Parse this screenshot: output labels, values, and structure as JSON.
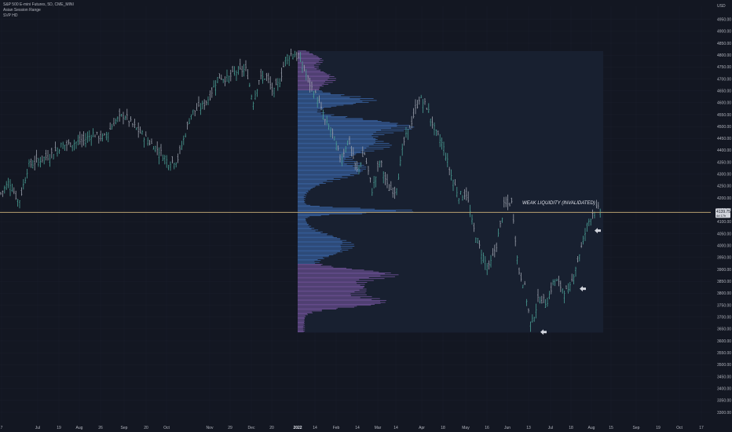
{
  "legend": {
    "symbol": "S&P 500 E-mini Futures, 5D, CME_MINI",
    "indicator1": "Asian Session Range",
    "indicator2": "SVP HD"
  },
  "currency": "USD",
  "chart_data": {
    "type": "candlestick",
    "y_ticks": [
      3300,
      3350,
      3400,
      3450,
      3500,
      3550,
      3600,
      3650,
      3700,
      3750,
      3800,
      3850,
      3900,
      3950,
      4000,
      4050,
      4100,
      4150,
      4200,
      4250,
      4300,
      4350,
      4400,
      4450,
      4500,
      4550,
      4600,
      4650,
      4700,
      4750,
      4800,
      4850,
      4900,
      4950
    ],
    "y_tick_labels": [
      "3300.00",
      "3350.00",
      "3400.00",
      "3450.00",
      "3500.00",
      "3550.00",
      "3600.00",
      "3650.00",
      "3700.00",
      "3750.00",
      "3800.00",
      "3850.00",
      "3900.00",
      "3950.00",
      "4000.00",
      "4050.00",
      "4100.00",
      "4150.00",
      "4200.00",
      "4250.00",
      "4300.00",
      "4350.00",
      "4400.00",
      "4450.00",
      "4500.00",
      "4550.00",
      "4600.00",
      "4650.00",
      "4700.00",
      "4750.00",
      "4800.00",
      "4850.00",
      "4900.00",
      "4950.00"
    ],
    "ylim": [
      3290,
      5005
    ],
    "x_labels": [
      "7",
      "Jul",
      "19",
      "Aug",
      "26",
      "Sep",
      "20",
      "Oct",
      "Nov",
      "29",
      "Dec",
      "20",
      "2022",
      "14",
      "Feb",
      "14",
      "Mar",
      "14",
      "Apr",
      "18",
      "May",
      "16",
      "Jun",
      "13",
      "Jul",
      "18",
      "Aug",
      "15",
      "Sep",
      "19",
      "Oct",
      "17"
    ],
    "price_line": 4139.75,
    "price_label": "4139.75",
    "price_countdown": "4d 17h",
    "annotation": "WEAK LIQUIDITY (INVALIDATED)",
    "annotation_price": 4174,
    "arrow_prices": [
      4063,
      3819,
      3637
    ],
    "profile_range": [
      3635,
      4817
    ],
    "anchors": [
      [
        0,
        4215
      ],
      [
        12,
        4270
      ],
      [
        24,
        4180
      ],
      [
        36,
        4335
      ],
      [
        50,
        4360
      ],
      [
        64,
        4380
      ],
      [
        78,
        4420
      ],
      [
        92,
        4430
      ],
      [
        106,
        4440
      ],
      [
        118,
        4470
      ],
      [
        132,
        4450
      ],
      [
        146,
        4520
      ],
      [
        158,
        4550
      ],
      [
        168,
        4510
      ],
      [
        180,
        4470
      ],
      [
        192,
        4430
      ],
      [
        204,
        4395
      ],
      [
        214,
        4350
      ],
      [
        226,
        4360
      ],
      [
        236,
        4470
      ],
      [
        244,
        4560
      ],
      [
        256,
        4580
      ],
      [
        266,
        4620
      ],
      [
        278,
        4710
      ],
      [
        290,
        4700
      ],
      [
        300,
        4730
      ],
      [
        314,
        4740
      ],
      [
        322,
        4600
      ],
      [
        330,
        4700
      ],
      [
        340,
        4710
      ],
      [
        348,
        4640
      ],
      [
        356,
        4690
      ],
      [
        364,
        4790
      ],
      [
        374,
        4810
      ],
      [
        384,
        4770
      ],
      [
        394,
        4680
      ],
      [
        404,
        4620
      ],
      [
        414,
        4520
      ],
      [
        422,
        4480
      ],
      [
        434,
        4360
      ],
      [
        444,
        4450
      ],
      [
        454,
        4310
      ],
      [
        464,
        4390
      ],
      [
        474,
        4230
      ],
      [
        484,
        4360
      ],
      [
        494,
        4240
      ],
      [
        504,
        4230
      ],
      [
        514,
        4430
      ],
      [
        524,
        4520
      ],
      [
        534,
        4620
      ],
      [
        544,
        4580
      ],
      [
        554,
        4480
      ],
      [
        564,
        4420
      ],
      [
        574,
        4300
      ],
      [
        584,
        4210
      ],
      [
        594,
        4220
      ],
      [
        602,
        4080
      ],
      [
        612,
        3980
      ],
      [
        622,
        3900
      ],
      [
        632,
        4000
      ],
      [
        642,
        4170
      ],
      [
        652,
        4180
      ],
      [
        660,
        3900
      ],
      [
        668,
        3830
      ],
      [
        676,
        3660
      ],
      [
        686,
        3780
      ],
      [
        696,
        3760
      ],
      [
        706,
        3860
      ],
      [
        716,
        3820
      ],
      [
        724,
        3800
      ],
      [
        732,
        3900
      ],
      [
        740,
        3990
      ],
      [
        748,
        4090
      ],
      [
        756,
        4150
      ],
      [
        766,
        4150
      ]
    ]
  }
}
